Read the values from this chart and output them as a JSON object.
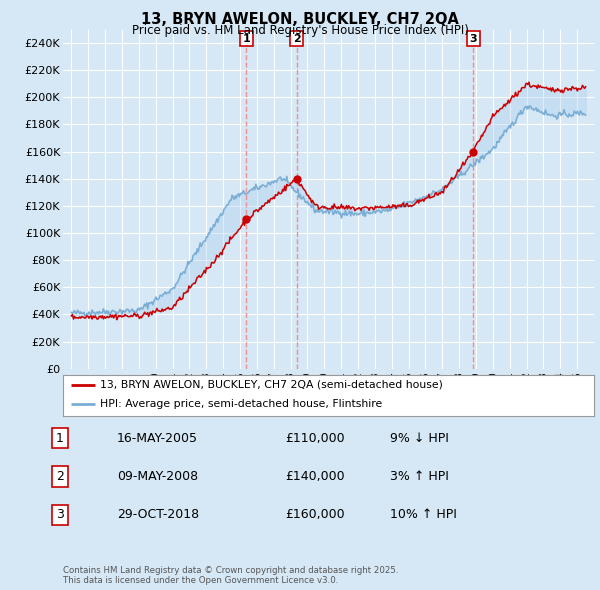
{
  "title": "13, BRYN AWELON, BUCKLEY, CH7 2QA",
  "subtitle": "Price paid vs. HM Land Registry's House Price Index (HPI)",
  "ylabel_ticks": [
    "£0",
    "£20K",
    "£40K",
    "£60K",
    "£80K",
    "£100K",
    "£120K",
    "£140K",
    "£160K",
    "£180K",
    "£200K",
    "£220K",
    "£240K"
  ],
  "ytick_values": [
    0,
    20000,
    40000,
    60000,
    80000,
    100000,
    120000,
    140000,
    160000,
    180000,
    200000,
    220000,
    240000
  ],
  "ylim": [
    0,
    250000
  ],
  "xlim_start": 1994.5,
  "xlim_end": 2026.0,
  "background_color": "#d6e8f5",
  "plot_bg_color": "#d6e8f5",
  "grid_color": "#ffffff",
  "sale_color": "#cc0000",
  "hpi_color": "#7aadd4",
  "vline_color": "#ee8888",
  "fill_color": "#c5dcef",
  "sales": [
    {
      "date_num": 2005.37,
      "price": 110000,
      "label": "1"
    },
    {
      "date_num": 2008.36,
      "price": 140000,
      "label": "2"
    },
    {
      "date_num": 2018.83,
      "price": 160000,
      "label": "3"
    }
  ],
  "legend_sale_label": "13, BRYN AWELON, BUCKLEY, CH7 2QA (semi-detached house)",
  "legend_hpi_label": "HPI: Average price, semi-detached house, Flintshire",
  "table_data": [
    {
      "num": "1",
      "date": "16-MAY-2005",
      "price": "£110,000",
      "hpi": "9% ↓ HPI"
    },
    {
      "num": "2",
      "date": "09-MAY-2008",
      "price": "£140,000",
      "hpi": "3% ↑ HPI"
    },
    {
      "num": "3",
      "date": "29-OCT-2018",
      "price": "£160,000",
      "hpi": "10% ↑ HPI"
    }
  ],
  "footer": "Contains HM Land Registry data © Crown copyright and database right 2025.\nThis data is licensed under the Open Government Licence v3.0.",
  "xtick_years": [
    1995,
    1996,
    1997,
    1998,
    1999,
    2000,
    2001,
    2002,
    2003,
    2004,
    2005,
    2006,
    2007,
    2008,
    2009,
    2010,
    2011,
    2012,
    2013,
    2014,
    2015,
    2016,
    2017,
    2018,
    2019,
    2020,
    2021,
    2022,
    2023,
    2024,
    2025
  ]
}
